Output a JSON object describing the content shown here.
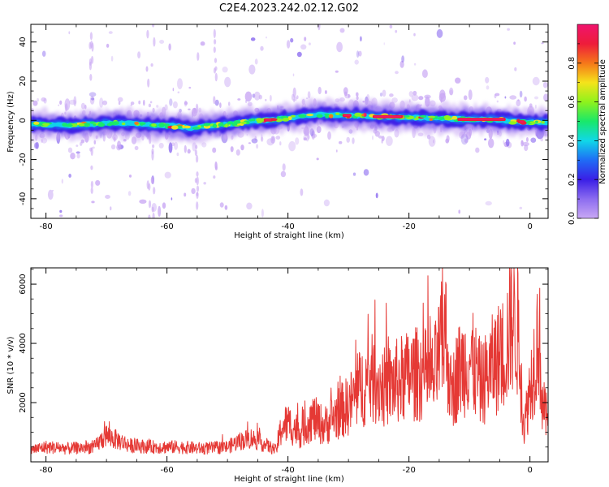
{
  "title": "C2E4.2023.242.02.12.G02",
  "colors": {
    "snr_line": "#e53935",
    "axes": "#000000"
  },
  "chart_data": [
    {
      "type": "heatmap",
      "name": "spectrogram",
      "xlabel": "Height of straight line (km)",
      "ylabel": "Frequency (Hz)",
      "xlim": [
        -82.5,
        3
      ],
      "ylim": [
        -50,
        49
      ],
      "xticks": [
        -80,
        -60,
        -40,
        -20,
        0
      ],
      "xtick_labels": [
        "-80",
        "-60",
        "-40",
        "-20",
        "0"
      ],
      "yticks": [
        -40,
        -20,
        0,
        20,
        40
      ],
      "ytick_labels": [
        "-40",
        "-20",
        "0",
        "20",
        "40"
      ],
      "ridge_center": {
        "x": [
          -82,
          -76,
          -70,
          -66,
          -62,
          -58,
          -56,
          -54,
          -50,
          -46,
          -42,
          -38,
          -35,
          -30,
          -25,
          -20,
          -15,
          -10,
          -6,
          -3,
          0,
          2
        ],
        "y": [
          -2,
          -2.5,
          -1.5,
          -1.5,
          -2.5,
          -3,
          -4,
          -3,
          -2,
          -0.5,
          0.5,
          2,
          3,
          2.5,
          2,
          1.5,
          1,
          0.5,
          0.5,
          -0.5,
          -1,
          -1
        ]
      },
      "colorbar": {
        "label": "Normalized spectral amplitude",
        "range": [
          0,
          1
        ],
        "ticks": [
          0.0,
          0.2,
          0.4,
          0.6,
          0.8
        ],
        "tick_labels": [
          "0.0",
          "0.2",
          "0.4",
          "0.6",
          "0.8"
        ],
        "colormap": [
          "#c9a8f4",
          "#8c6cf0",
          "#3a1fe6",
          "#1f6cf5",
          "#10d8e8",
          "#19e86a",
          "#8ff21c",
          "#f5e31b",
          "#f5771a",
          "#ee1c3a",
          "#f0146e"
        ]
      }
    },
    {
      "type": "line",
      "name": "snr",
      "xlabel": "Height of straight line (km)",
      "ylabel": "SNR (10 * v/v)",
      "xlim": [
        -82.5,
        3
      ],
      "ylim": [
        0,
        6550
      ],
      "xticks": [
        -80,
        -60,
        -40,
        -20,
        0
      ],
      "xtick_labels": [
        "-80",
        "-60",
        "-40",
        "-20",
        "0"
      ],
      "yticks": [
        2000,
        4000,
        6000
      ],
      "ytick_labels": [
        "2000",
        "4000",
        "6000"
      ],
      "series": [
        {
          "x": [
            -82.5,
            -80,
            -76,
            -72,
            -70,
            -69,
            -66,
            -62,
            -58,
            -54,
            -50,
            -48,
            -46,
            -44,
            -42,
            -41,
            -40,
            -38,
            -36,
            -34,
            -32,
            -30,
            -28,
            -26,
            -24,
            -22,
            -20,
            -18,
            -16,
            -15,
            -14,
            -13,
            -12,
            -10,
            -8,
            -6,
            -4,
            -3,
            -2,
            -1,
            0,
            1,
            1.5,
            2,
            3
          ],
          "y": [
            400,
            500,
            450,
            500,
            900,
            800,
            550,
            500,
            500,
            450,
            500,
            700,
            800,
            600,
            400,
            1200,
            1300,
            1000,
            1500,
            1200,
            1600,
            1900,
            2500,
            2800,
            2500,
            2700,
            2900,
            3000,
            2800,
            3600,
            4500,
            2200,
            3000,
            3500,
            2600,
            3300,
            3800,
            5000,
            4500,
            1100,
            2500,
            3800,
            4500,
            2000,
            1300
          ]
        }
      ]
    }
  ]
}
